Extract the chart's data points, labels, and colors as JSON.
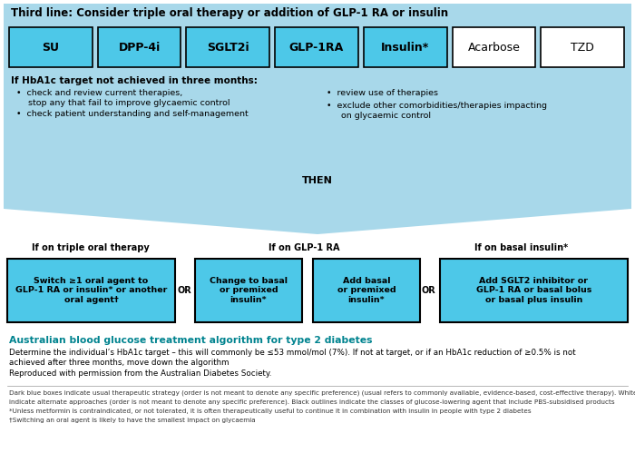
{
  "bg_color": "#ffffff",
  "light_blue": "#A8D8EA",
  "cyan_box": "#4DC8E8",
  "teal_title": "#00838F",
  "title_text": "Third line: Consider triple oral therapy or addition of GLP-1 RA or insulin",
  "top_boxes_blue": [
    "SU",
    "DPP-4i",
    "SGLT2i",
    "GLP-1RA",
    "Insulin*"
  ],
  "top_boxes_white": [
    "Acarbose",
    "TZD"
  ],
  "hba1c_title": "If HbA1c target not achieved in three months:",
  "bullet1a": "check and review current therapies,",
  "bullet1b": "  stop any that fail to improve glycaemic control",
  "bullet2": "check patient understanding and self-management",
  "bullet3": "review use of therapies",
  "bullet4a": "exclude other comorbidities/therapies impacting",
  "bullet4b": "  on glycaemic control",
  "then_text": "THEN",
  "col1_header": "If on triple oral therapy",
  "col2_header": "If on GLP-1 RA",
  "col3_header": "If on basal insulin*",
  "box1_text": "Switch ≥1 oral agent to\nGLP-1 RA or insulin* or another\noral agent†",
  "box2_text": "Change to basal\nor premixed\ninsulin*",
  "box3_text": "Add basal\nor premixed\ninsulin*",
  "box4_text": "Add SGLT2 inhibitor or\nGLP-1 RA or basal bolus\nor basal plus insulin",
  "or_text": "OR",
  "algo_title": "Australian blood glucose treatment algorithm for type 2 diabetes",
  "algo_body1": "Determine the individual’s HbA1c target – this will commonly be ≤53 mmol/mol (7%). If not at target, or if an HbA1c reduction of ≥0.5% is not",
  "algo_body2": "achieved after three months, move down the algorithm",
  "algo_body3": "Reproduced with permission from the Australian Diabetes Society.",
  "footnote_line1": "Dark blue boxes indicate usual therapeutic strategy (order is not meant to denote any specific preference) (usual refers to commonly available, evidence-based, cost-effective therapy). White boxes",
  "footnote_line2": "indicate alternate approaches (order is not meant to denote any specific preference). Black outlines indicate the classes of glucose-lowering agent that include PBS-subsidised products",
  "footnote_line3": "*Unless metformin is contraindicated, or not tolerated, it is often therapeutically useful to continue it in combination with insulin in people with type 2 diabetes",
  "footnote_line4": "†Switching an oral agent is likely to have the smallest impact on glycaemia"
}
